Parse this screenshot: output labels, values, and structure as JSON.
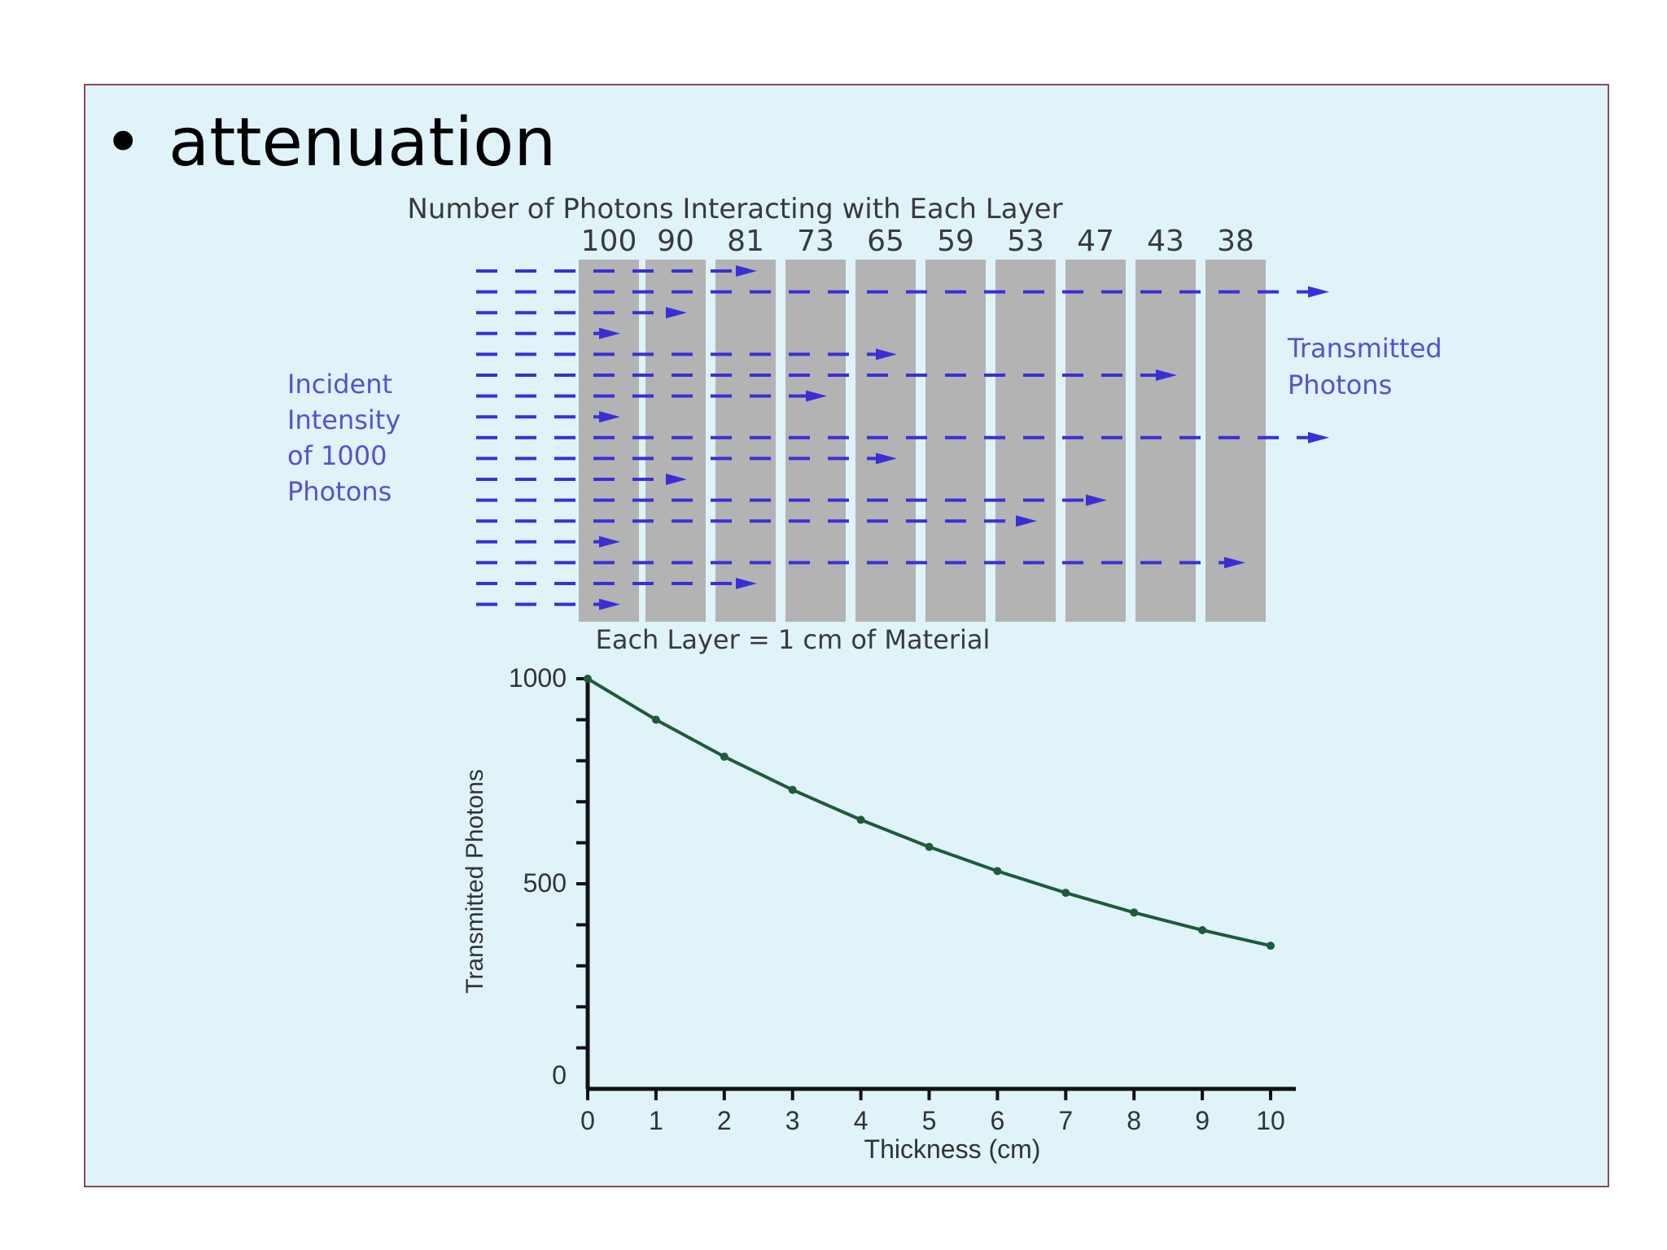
{
  "slide": {
    "bullet": "•",
    "title": "attenuation"
  },
  "diagram": {
    "header": "Number of Photons Interacting with Each Layer",
    "layer_counts": [
      "100",
      "90",
      "81",
      "73",
      "65",
      "59",
      "53",
      "47",
      "43",
      "38"
    ],
    "incident_label": [
      "Incident",
      "Intensity",
      "of 1000",
      "Photons"
    ],
    "transmitted_label": [
      "Transmitted",
      "Photons"
    ],
    "layer_caption": "Each Layer = 1 cm of Material",
    "colors": {
      "arrow": "#3a2fd6",
      "layer": "#b3b3b3",
      "label": "#5a4fd0"
    },
    "arrows": [
      {
        "stop_layer": 3
      },
      {
        "stop_layer": 11
      },
      {
        "stop_layer": 2
      },
      {
        "stop_layer": 1
      },
      {
        "stop_layer": 5
      },
      {
        "stop_layer": 9
      },
      {
        "stop_layer": 4
      },
      {
        "stop_layer": 1
      },
      {
        "stop_layer": 11
      },
      {
        "stop_layer": 5
      },
      {
        "stop_layer": 2
      },
      {
        "stop_layer": 8
      },
      {
        "stop_layer": 7
      },
      {
        "stop_layer": 1
      },
      {
        "stop_layer": 10
      },
      {
        "stop_layer": 3
      },
      {
        "stop_layer": 1
      }
    ]
  },
  "chart_data": {
    "type": "line",
    "xlabel": "Thickness (cm)",
    "ylabel": "Transmitted Photons",
    "x": [
      0,
      1,
      2,
      3,
      4,
      5,
      6,
      7,
      8,
      9,
      10
    ],
    "values": [
      1000,
      900,
      810,
      729,
      656,
      590,
      531,
      478,
      430,
      387,
      349
    ],
    "xlim": [
      0,
      10
    ],
    "ylim": [
      0,
      1000
    ],
    "x_ticks": [
      "0",
      "1",
      "2",
      "3",
      "4",
      "5",
      "6",
      "7",
      "8",
      "9",
      "10"
    ],
    "y_ticks": [
      {
        "value": 0,
        "label": "0"
      },
      {
        "value": 500,
        "label": "500"
      },
      {
        "value": 1000,
        "label": "1000"
      }
    ],
    "line_color": "#1f5a3a",
    "grid": false,
    "legend": "none"
  }
}
